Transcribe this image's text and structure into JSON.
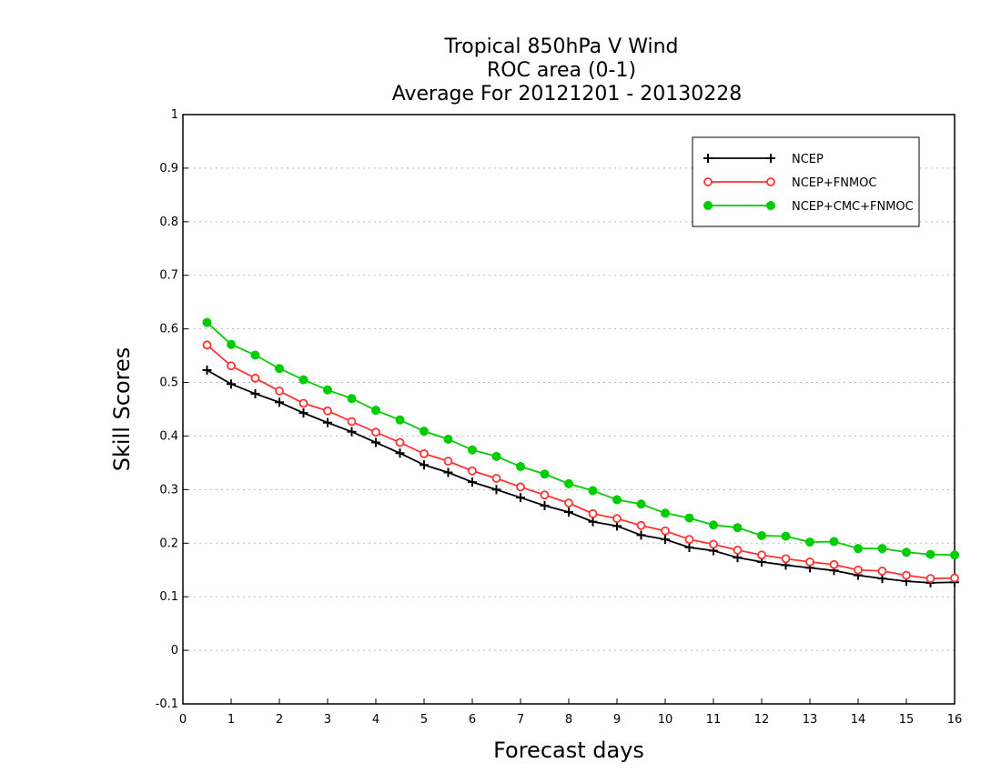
{
  "chart_data": {
    "type": "line",
    "title_lines": [
      "Tropical 850hPa V Wind",
      "ROC area (0-1)",
      "Average For 20121201 - 20130228"
    ],
    "xlabel": "Forecast days",
    "ylabel": "Skill Scores",
    "xlim": [
      0,
      16
    ],
    "ylim": [
      -0.1,
      1
    ],
    "x_ticks": [
      "0",
      "1",
      "2",
      "3",
      "4",
      "5",
      "6",
      "7",
      "8",
      "9",
      "10",
      "11",
      "12",
      "13",
      "14",
      "15",
      "16"
    ],
    "y_ticks": [
      "-0.1",
      "0",
      "0.1",
      "0.2",
      "0.3",
      "0.4",
      "0.5",
      "0.6",
      "0.7",
      "0.8",
      "0.9",
      "1"
    ],
    "grid": "horizontal dotted",
    "legend_position": "top-right",
    "x": [
      0.5,
      1,
      1.5,
      2,
      2.5,
      3,
      3.5,
      4,
      4.5,
      5,
      5.5,
      6,
      6.5,
      7,
      7.5,
      8,
      8.5,
      9,
      9.5,
      10,
      10.5,
      11,
      11.5,
      12,
      12.5,
      13,
      13.5,
      14,
      14.5,
      15,
      15.5,
      16
    ],
    "series": [
      {
        "name": "NCEP",
        "color": "#000000",
        "marker": "plus",
        "values": [
          0.523,
          0.497,
          0.479,
          0.463,
          0.443,
          0.425,
          0.408,
          0.388,
          0.368,
          0.346,
          0.332,
          0.314,
          0.3,
          0.285,
          0.27,
          0.258,
          0.24,
          0.232,
          0.215,
          0.207,
          0.192,
          0.186,
          0.173,
          0.165,
          0.159,
          0.154,
          0.149,
          0.14,
          0.134,
          0.129,
          0.126,
          0.127
        ]
      },
      {
        "name": "NCEP+FNMOC",
        "color": "#ff3333",
        "marker": "open-circle",
        "values": [
          0.57,
          0.531,
          0.508,
          0.484,
          0.461,
          0.447,
          0.427,
          0.407,
          0.388,
          0.367,
          0.353,
          0.335,
          0.321,
          0.305,
          0.29,
          0.275,
          0.255,
          0.246,
          0.233,
          0.223,
          0.207,
          0.198,
          0.187,
          0.178,
          0.171,
          0.165,
          0.16,
          0.15,
          0.148,
          0.14,
          0.134,
          0.135
        ]
      },
      {
        "name": "NCEP+CMC+FNMOC",
        "color": "#00cc00",
        "marker": "filled-circle",
        "values": [
          0.612,
          0.571,
          0.551,
          0.526,
          0.505,
          0.486,
          0.47,
          0.448,
          0.43,
          0.409,
          0.394,
          0.374,
          0.362,
          0.343,
          0.329,
          0.311,
          0.298,
          0.281,
          0.273,
          0.256,
          0.247,
          0.234,
          0.229,
          0.214,
          0.213,
          0.202,
          0.203,
          0.19,
          0.19,
          0.183,
          0.179,
          0.178
        ]
      }
    ]
  }
}
